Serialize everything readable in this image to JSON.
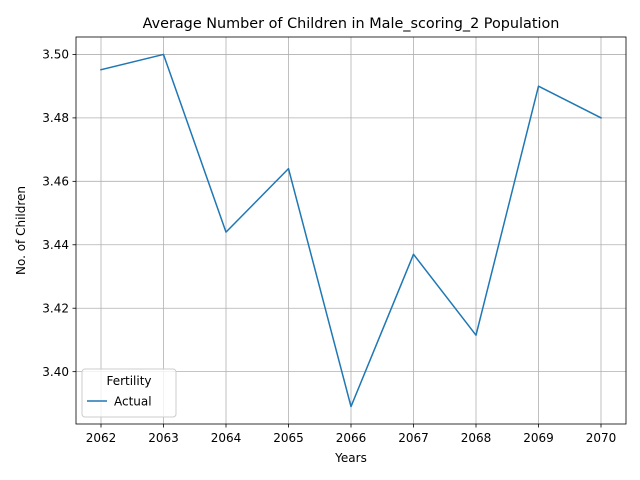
{
  "chart_data": {
    "type": "line",
    "title": "Average Number of Children in Male_scoring_2 Population",
    "xlabel": "Years",
    "ylabel": "No. of Children",
    "x": [
      2062,
      2063,
      2064,
      2065,
      2066,
      2067,
      2068,
      2069,
      2070
    ],
    "series": [
      {
        "name": "Actual",
        "color": "#1f77b4",
        "values": [
          3.4952,
          3.5,
          3.444,
          3.464,
          3.389,
          3.437,
          3.4115,
          3.49,
          3.48
        ]
      }
    ],
    "ylim": [
      3.3835,
      3.5055
    ],
    "yticks": [
      3.4,
      3.42,
      3.44,
      3.46,
      3.48,
      3.5
    ],
    "ytick_labels": [
      "3.40",
      "3.42",
      "3.44",
      "3.46",
      "3.48",
      "3.50"
    ],
    "xticks": [
      2062,
      2063,
      2064,
      2065,
      2066,
      2067,
      2068,
      2069,
      2070
    ],
    "xtick_labels": [
      "2062",
      "2063",
      "2064",
      "2065",
      "2066",
      "2067",
      "2068",
      "2069",
      "2070"
    ],
    "grid": true,
    "legend": {
      "title": "Fertility",
      "position": "lower-left"
    }
  }
}
